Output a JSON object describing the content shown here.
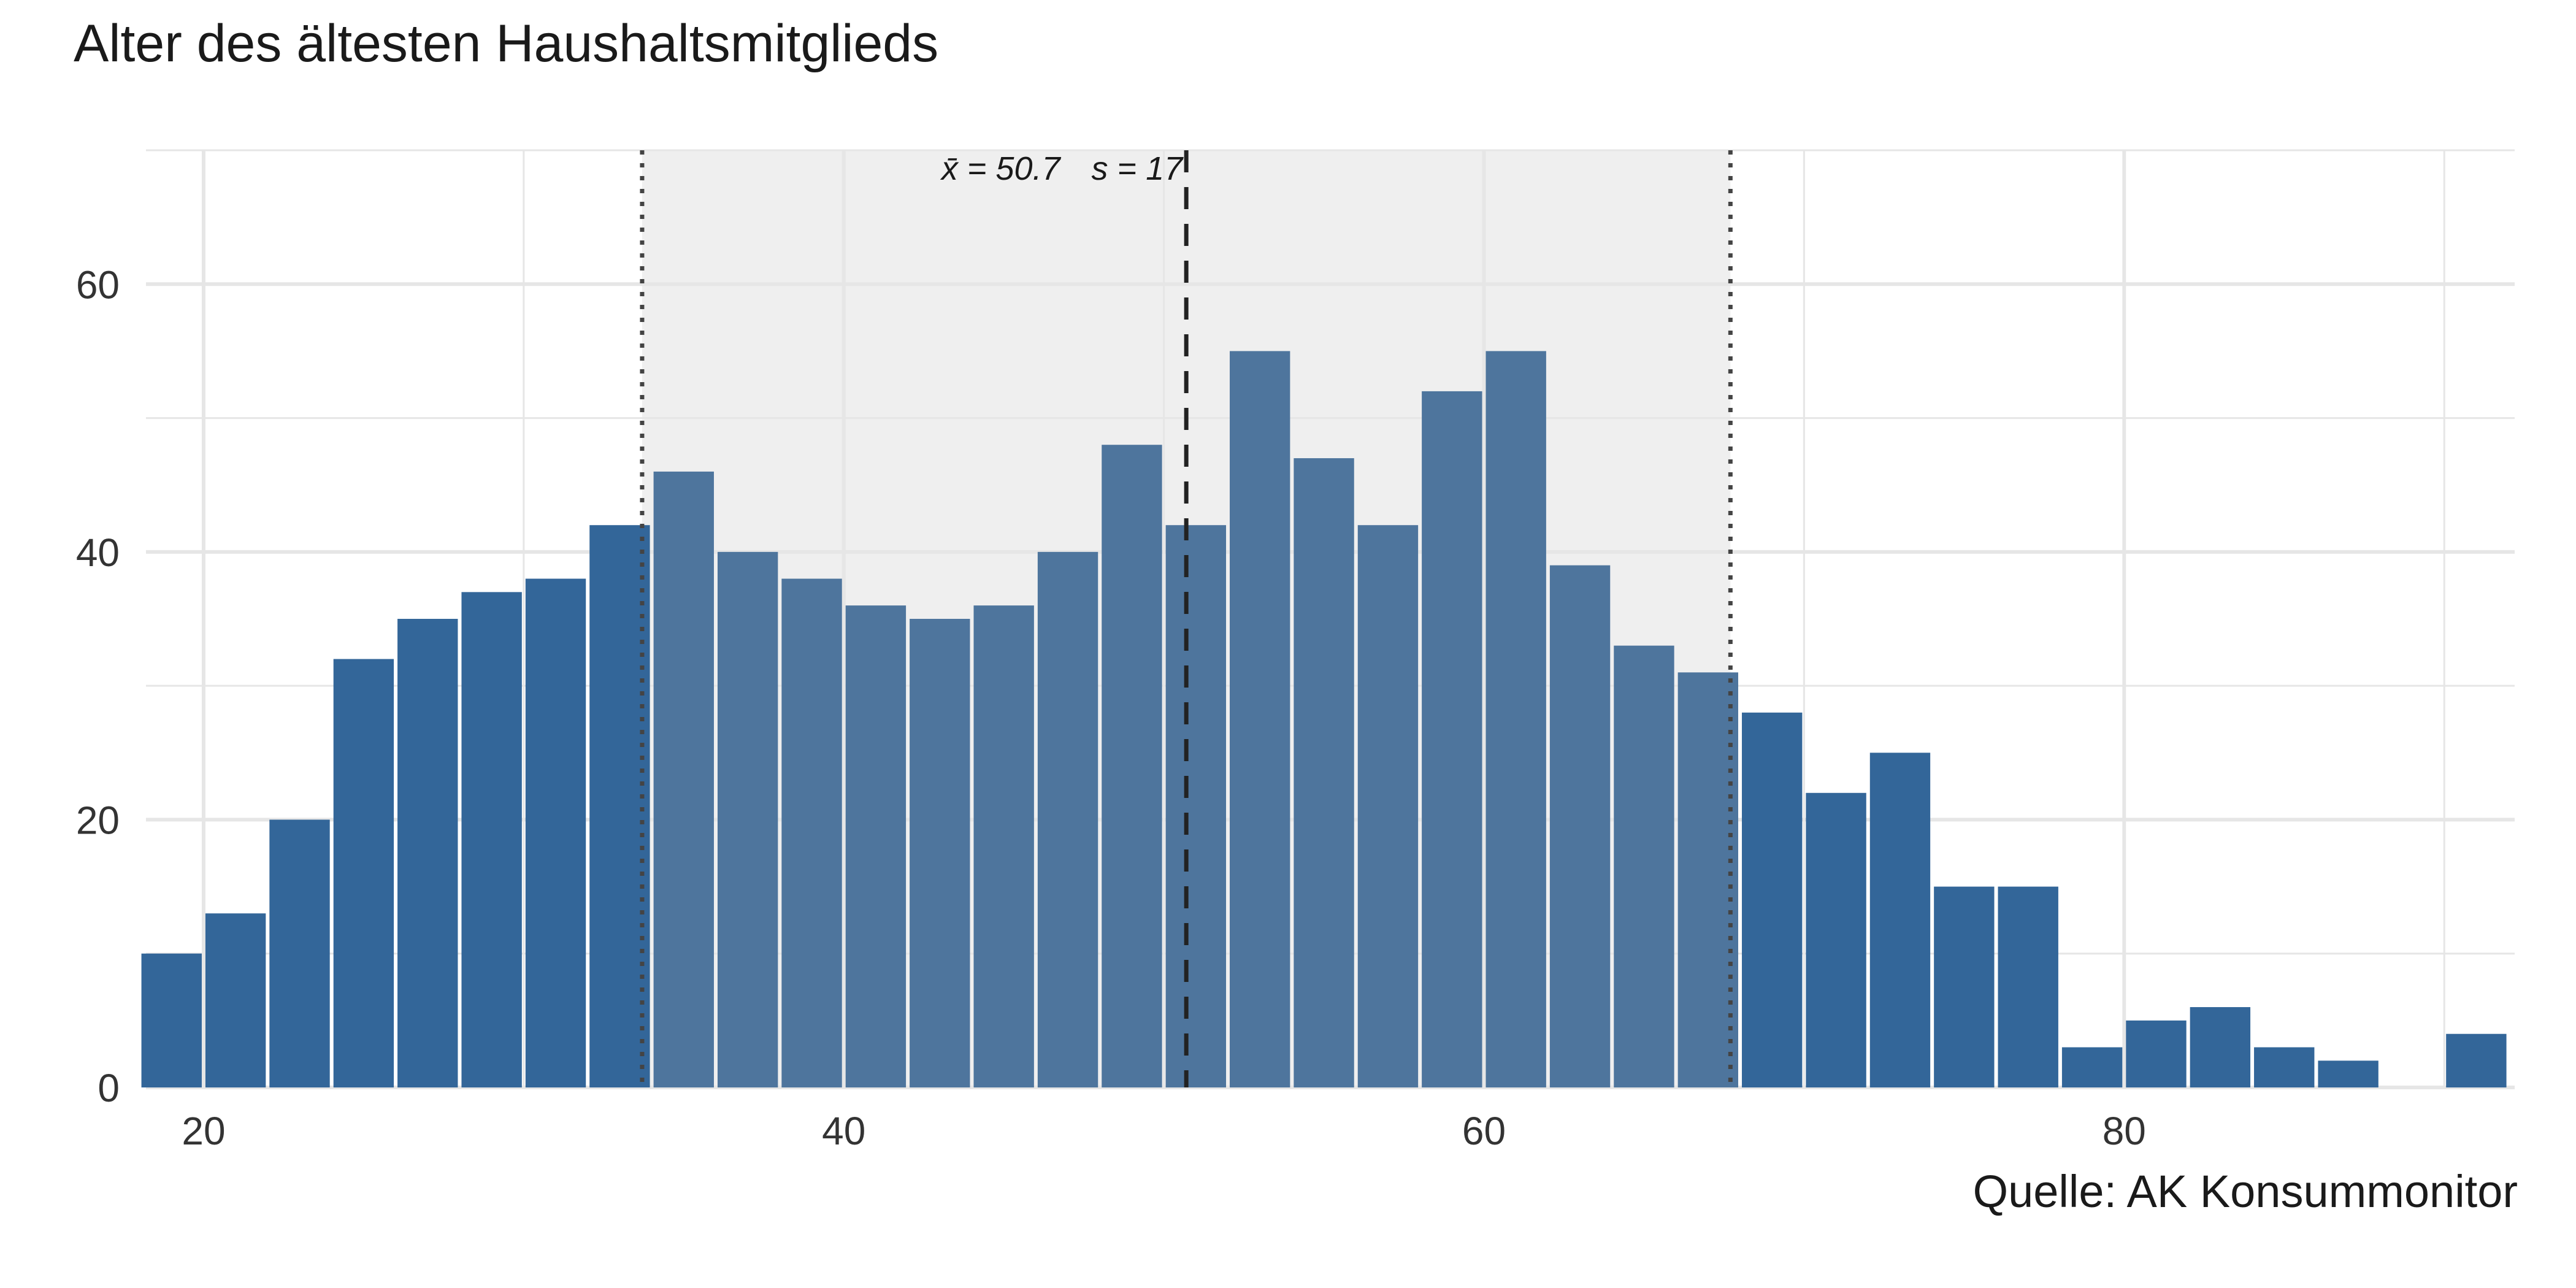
{
  "chart_data": {
    "type": "bar",
    "title": "Alter des ältesten Haushaltsmitglieds",
    "caption": "Quelle: AK Konsummonitor",
    "xlabel": "",
    "ylabel": "",
    "bin_width": 2,
    "xlim": [
      18.2,
      92.2
    ],
    "ylim": [
      0,
      70
    ],
    "x_ticks": [
      20,
      40,
      60,
      80
    ],
    "y_ticks": [
      0,
      20,
      40,
      60
    ],
    "bin_centers": [
      19,
      21,
      23,
      25,
      27,
      29,
      31,
      33,
      35,
      37,
      39,
      41,
      43,
      45,
      47,
      49,
      51,
      53,
      55,
      57,
      59,
      61,
      63,
      65,
      67,
      69,
      71,
      73,
      75,
      77,
      79,
      81,
      83,
      85,
      87,
      89,
      91
    ],
    "values": [
      10,
      13,
      20,
      32,
      35,
      37,
      38,
      42,
      46,
      40,
      38,
      36,
      35,
      36,
      40,
      48,
      42,
      55,
      47,
      42,
      52,
      55,
      39,
      33,
      31,
      28,
      22,
      25,
      15,
      15,
      3,
      5,
      6,
      3,
      2,
      0,
      4
    ],
    "mean": 50.7,
    "sd": 17,
    "mean_label": "x̄ = 50.7",
    "sd_label": "s = 17",
    "grid": true,
    "colors": {
      "bar_outside": "#336699",
      "bar_inside": "#4e759d",
      "band": "#efefef",
      "grid": "#e6e6e6",
      "mean_line": "#222222",
      "sd_line": "#444444"
    }
  }
}
